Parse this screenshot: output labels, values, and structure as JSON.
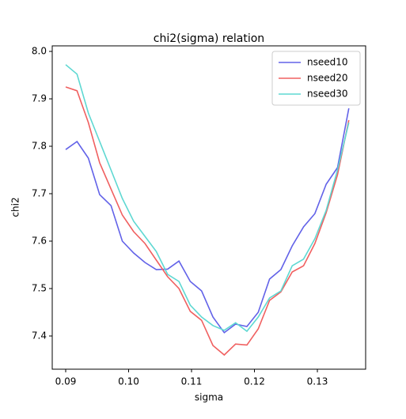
{
  "chart_data": {
    "type": "line",
    "title": "chi2(sigma) relation",
    "xlabel": "sigma",
    "ylabel": "chi2",
    "x": [
      0.09,
      0.0918,
      0.0936,
      0.0954,
      0.0972,
      0.099,
      0.1008,
      0.1026,
      0.1044,
      0.1062,
      0.108,
      0.1098,
      0.1116,
      0.1134,
      0.1152,
      0.117,
      0.1188,
      0.1206,
      0.1224,
      0.1242,
      0.126,
      0.1278,
      0.1296,
      0.1314,
      0.1332,
      0.135
    ],
    "series": [
      {
        "name": "nseed10",
        "color": "#6262e8",
        "values": [
          7.793,
          7.81,
          7.775,
          7.698,
          7.675,
          7.6,
          7.575,
          7.555,
          7.54,
          7.541,
          7.558,
          7.515,
          7.495,
          7.44,
          7.407,
          7.425,
          7.42,
          7.45,
          7.52,
          7.54,
          7.59,
          7.63,
          7.658,
          7.72,
          7.755,
          7.88
        ]
      },
      {
        "name": "nseed20",
        "color": "#f06060",
        "values": [
          7.925,
          7.917,
          7.85,
          7.765,
          7.71,
          7.655,
          7.62,
          7.595,
          7.56,
          7.525,
          7.5,
          7.452,
          7.433,
          7.38,
          7.36,
          7.383,
          7.381,
          7.415,
          7.475,
          7.493,
          7.535,
          7.548,
          7.595,
          7.66,
          7.74,
          7.855
        ]
      },
      {
        "name": "nseed30",
        "color": "#5ed8d2",
        "values": [
          7.972,
          7.952,
          7.87,
          7.81,
          7.75,
          7.69,
          7.642,
          7.61,
          7.578,
          7.53,
          7.515,
          7.465,
          7.44,
          7.422,
          7.412,
          7.428,
          7.41,
          7.44,
          7.48,
          7.495,
          7.548,
          7.562,
          7.605,
          7.665,
          7.75,
          7.85
        ]
      }
    ],
    "xlim": [
      0.08786,
      0.13767
    ],
    "ylim": [
      7.33,
      8.0117
    ],
    "xticks": [
      0.09,
      {
        "value": 0.1,
        "label": "0.10"
      },
      0.11,
      0.12,
      0.13
    ],
    "yticks": [
      7.4,
      7.5,
      7.6,
      7.7,
      7.8,
      7.9,
      {
        "value": 8,
        "label": "8.0"
      }
    ],
    "legend": "upper right"
  }
}
